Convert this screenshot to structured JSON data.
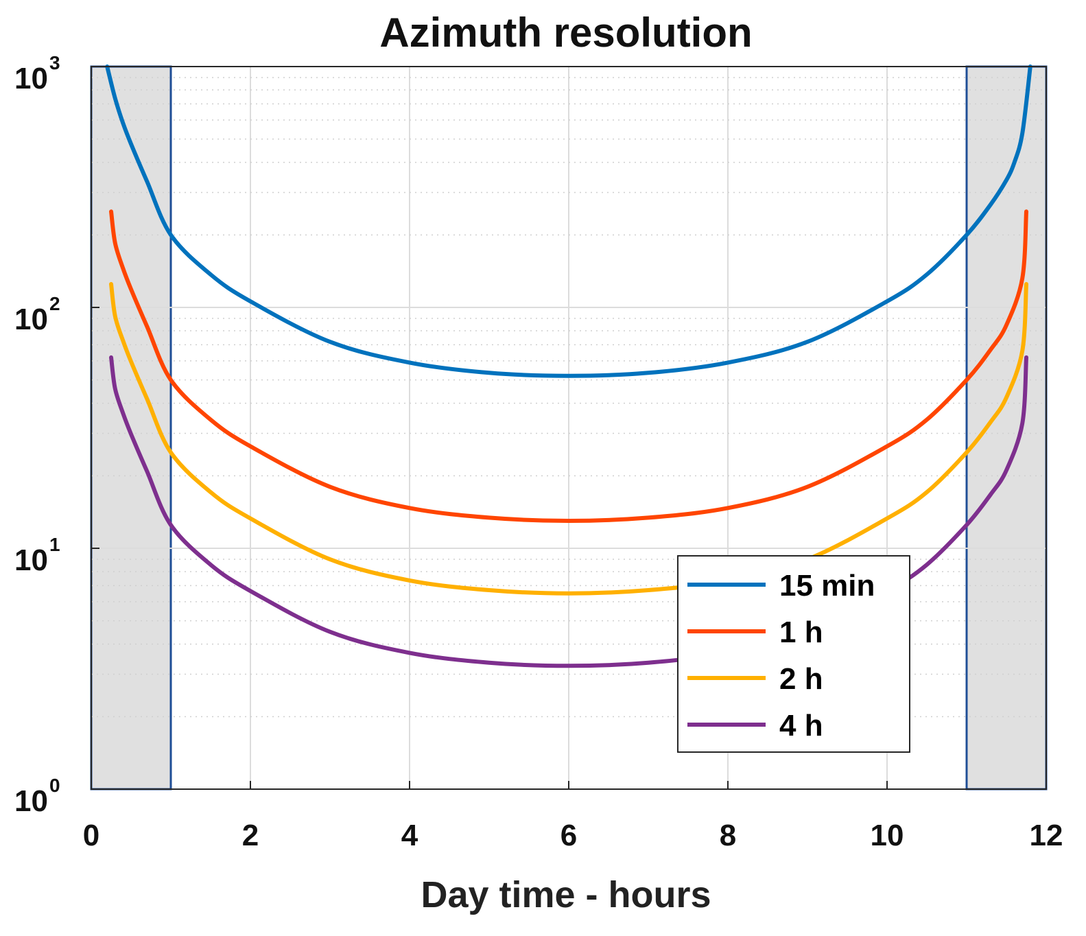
{
  "chart_data": {
    "type": "line",
    "title": "Azimuth resolution",
    "xlabel": "Day time - hours",
    "ylabel": "",
    "xlim": [
      0,
      12
    ],
    "ylim": [
      1,
      1000
    ],
    "yscale": "log",
    "xticks": [
      0,
      2,
      4,
      6,
      8,
      10,
      12
    ],
    "xtick_labels": [
      "0",
      "2",
      "4",
      "6",
      "8",
      "10",
      "12"
    ],
    "yticks": [
      1,
      10,
      100,
      1000
    ],
    "ytick_labels": [
      {
        "base": "10",
        "exp": "0"
      },
      {
        "base": "10",
        "exp": "1"
      },
      {
        "base": "10",
        "exp": "2"
      },
      {
        "base": "10",
        "exp": "3"
      }
    ],
    "grid": true,
    "legend_position": "bottom-right",
    "shaded_regions": [
      {
        "x_start": 0,
        "x_end": 1,
        "fill": "#e0e0e0",
        "stroke": "#1f4e96"
      },
      {
        "x_start": 11,
        "x_end": 12,
        "fill": "#e0e0e0",
        "stroke": "#1f4e96"
      }
    ],
    "series": [
      {
        "name": "15 min",
        "color": "#0072BD",
        "x": [
          0.2,
          0.3,
          0.4,
          0.5,
          0.7,
          1.0,
          1.5,
          2.0,
          3.0,
          4.0,
          5.0,
          6.0,
          7.0,
          8.0,
          9.0,
          10.0,
          10.5,
          11.0,
          11.3,
          11.5,
          11.6,
          11.7,
          11.8
        ],
        "y": [
          1000,
          738,
          581,
          477,
          334,
          200,
          137,
          106,
          72,
          59,
          53.5,
          52,
          53.5,
          59,
          72,
          106,
          137,
          200,
          267,
          338,
          400,
          528,
          1000
        ]
      },
      {
        "name": "1 h",
        "color": "#FF4500",
        "x": [
          0.25,
          0.3,
          0.4,
          0.5,
          0.7,
          1.0,
          1.5,
          2.0,
          3.0,
          4.0,
          5.0,
          6.0,
          7.0,
          8.0,
          9.0,
          10.0,
          10.5,
          11.0,
          11.3,
          11.5,
          11.7,
          11.75
        ],
        "y": [
          250,
          185,
          145,
          119,
          83.5,
          50,
          34.2,
          26.5,
          18,
          14.7,
          13.4,
          13,
          13.4,
          14.7,
          18,
          26.5,
          34.2,
          50,
          66.7,
          84.5,
          132,
          250
        ]
      },
      {
        "name": "2 h",
        "color": "#FFB000",
        "x": [
          0.25,
          0.3,
          0.4,
          0.5,
          0.7,
          1.0,
          1.5,
          2.0,
          3.0,
          4.0,
          5.0,
          6.0,
          7.0,
          8.0,
          9.0,
          10.0,
          10.5,
          11.0,
          11.3,
          11.5,
          11.7,
          11.75
        ],
        "y": [
          125,
          92,
          72.6,
          59.6,
          41.8,
          25,
          17.1,
          13.3,
          9,
          7.35,
          6.7,
          6.5,
          6.7,
          7.35,
          9,
          13.3,
          17.1,
          25,
          33.4,
          42.3,
          66,
          125
        ]
      },
      {
        "name": "4 h",
        "color": "#7E2F8E",
        "x": [
          0.25,
          0.3,
          0.4,
          0.5,
          0.7,
          1.0,
          1.5,
          2.0,
          3.0,
          4.0,
          5.0,
          6.0,
          7.0,
          8.0,
          9.0,
          10.0,
          10.5,
          11.0,
          11.3,
          11.5,
          11.7,
          11.75
        ],
        "y": [
          62,
          46,
          36.3,
          29.8,
          20.9,
          12.5,
          8.55,
          6.65,
          4.5,
          3.68,
          3.35,
          3.25,
          3.35,
          3.68,
          4.5,
          6.65,
          8.55,
          12.5,
          16.7,
          21.1,
          33,
          62
        ]
      }
    ]
  }
}
